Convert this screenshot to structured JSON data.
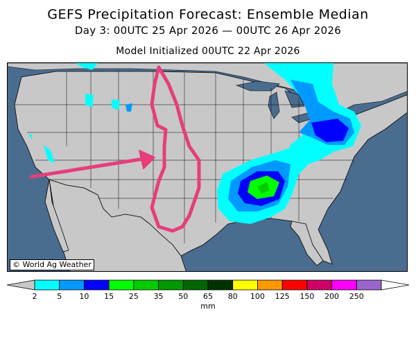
{
  "header": {
    "title": "GEFS Precipitation Forecast: Ensemble Median",
    "subtitle": "Day 3: 00UTC 25 Apr 2026 — 00UTC 26 Apr 2026",
    "initialized": "Model Initialized 00UTC 22 Apr 2026"
  },
  "map": {
    "credit": "© World Ag Weather",
    "colors": {
      "ocean": "#4a6c8f",
      "land": "#c8c8c8",
      "annotation": "#e63e7a"
    }
  },
  "legend": {
    "units": "mm",
    "ticks": [
      "2",
      "5",
      "10",
      "15",
      "25",
      "35",
      "50",
      "65",
      "80",
      "100",
      "125",
      "150",
      "200",
      "250"
    ],
    "colors": [
      "#00ffff",
      "#0099ff",
      "#0000ff",
      "#00ff00",
      "#00cc00",
      "#009900",
      "#006600",
      "#003300",
      "#ffff00",
      "#ff9900",
      "#ff0000",
      "#cc0066",
      "#ff00ff",
      "#9966cc"
    ]
  }
}
